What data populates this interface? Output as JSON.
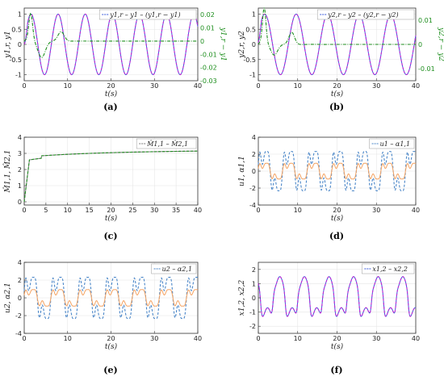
{
  "chart_data": [
    {
      "panel": "(a)",
      "type": "line",
      "xlabel": "t(s)",
      "ylabel": "y1,r, y1",
      "ylabel_right": "y1,r − y1",
      "xlim": [
        0,
        40
      ],
      "ylim": [
        -1.2,
        1.2
      ],
      "ylim_right": [
        -0.03,
        0.025
      ],
      "xticks": [
        "0",
        "10",
        "20",
        "30",
        "40"
      ],
      "yticks": [
        "-1",
        "-0.5",
        "0",
        "0.5",
        "1"
      ],
      "yticks_right": [
        "-0.03",
        "-0.02",
        "-0.01",
        "0",
        "0.01",
        "0.02"
      ],
      "legend": [
        "y1,r",
        "y1",
        "(y1,r − y1)"
      ],
      "legend_position": "top-right",
      "series": [
        {
          "name": "y1,r",
          "color": "#3b5bdb",
          "style": "solid",
          "wave": "sine",
          "amp": 1.0,
          "freq_hz": 0.16,
          "phase": 0
        },
        {
          "name": "y1",
          "color": "#c026d3",
          "style": "dashed",
          "wave": "sine",
          "amp": 1.0,
          "freq_hz": 0.16,
          "phase": 0
        },
        {
          "name": "(y1,r − y1)",
          "axis": "right",
          "color": "#1f8f1f",
          "style": "dashdot",
          "wave": "transient",
          "peak": 0.02,
          "neg_peak": -0.012
        }
      ]
    },
    {
      "panel": "(b)",
      "type": "line",
      "xlabel": "t(s)",
      "ylabel": "y2,r, y2",
      "ylabel_right": "y2,r − y2",
      "xlim": [
        0,
        40
      ],
      "ylim": [
        -1.2,
        1.2
      ],
      "ylim_right": [
        -0.015,
        0.015
      ],
      "xticks": [
        "0",
        "10",
        "20",
        "30",
        "40"
      ],
      "yticks": [
        "-1",
        "-0.5",
        "0",
        "0.5",
        "1"
      ],
      "yticks_right": [
        "-0.01",
        "0",
        "0.01"
      ],
      "legend": [
        "y2,r",
        "y2",
        "(y2,r − y2)"
      ],
      "legend_position": "top-right",
      "series": [
        {
          "name": "y2,r",
          "color": "#3b5bdb",
          "style": "solid",
          "wave": "sine",
          "amp": 1.0,
          "freq_hz": 0.125,
          "phase": 0.3
        },
        {
          "name": "y2",
          "color": "#c026d3",
          "style": "dashed",
          "wave": "sine",
          "amp": 1.0,
          "freq_hz": 0.125,
          "phase": 0.3
        },
        {
          "name": "(y2,r − y2)",
          "axis": "right",
          "color": "#1f8f1f",
          "style": "dashdot",
          "wave": "transient",
          "peak": 0.014,
          "neg_peak": -0.004
        }
      ]
    },
    {
      "panel": "(c)",
      "type": "line",
      "xlabel": "t(s)",
      "ylabel": "M̂1,1, M̂2,1",
      "xlim": [
        0,
        40
      ],
      "ylim": [
        -0.2,
        4
      ],
      "xticks": [
        "0",
        "5",
        "10",
        "15",
        "20",
        "25",
        "30",
        "35",
        "40"
      ],
      "yticks": [
        "0",
        "1",
        "2",
        "3",
        "4"
      ],
      "legend": [
        "M̂1,1",
        "M̂2,1"
      ],
      "legend_position": "top-right",
      "series": [
        {
          "name": "M̂1,1",
          "color": "#7a7a7a",
          "style": "solid",
          "wave": "steps"
        },
        {
          "name": "M̂2,1",
          "color": "#1f8f1f",
          "style": "dashed",
          "wave": "steps"
        }
      ]
    },
    {
      "panel": "(d)",
      "type": "line",
      "xlabel": "t(s)",
      "ylabel": "u1, α1,1",
      "xlim": [
        0,
        40
      ],
      "ylim": [
        -4,
        4
      ],
      "xticks": [
        "0",
        "10",
        "20",
        "30",
        "40"
      ],
      "yticks": [
        "-4",
        "-2",
        "0",
        "2",
        "4"
      ],
      "legend": [
        "u1",
        "α1,1"
      ],
      "legend_position": "top-right",
      "series": [
        {
          "name": "u1",
          "color": "#4a86c8",
          "style": "dashed",
          "wave": "control",
          "amp": 3.0,
          "freq_hz": 0.16
        },
        {
          "name": "α1,1",
          "color": "#f4a261",
          "style": "solid",
          "wave": "control",
          "amp": 1.2,
          "freq_hz": 0.16
        }
      ]
    },
    {
      "panel": "(e)",
      "type": "line",
      "xlabel": "t(s)",
      "ylabel": "u2, α2,1",
      "xlim": [
        0,
        40
      ],
      "ylim": [
        -4,
        4
      ],
      "xticks": [
        "0",
        "10",
        "20",
        "30",
        "40"
      ],
      "yticks": [
        "-4",
        "-2",
        "0",
        "2",
        "4"
      ],
      "legend": [
        "u2",
        "α2,1"
      ],
      "legend_position": "top-right",
      "series": [
        {
          "name": "u2",
          "color": "#4a86c8",
          "style": "dashed",
          "wave": "control",
          "amp": 3.0,
          "freq_hz": 0.16
        },
        {
          "name": "α2,1",
          "color": "#f4a261",
          "style": "solid",
          "wave": "control",
          "amp": 1.2,
          "freq_hz": 0.16
        }
      ]
    },
    {
      "panel": "(f)",
      "type": "line",
      "xlabel": "t(s)",
      "ylabel": "x1,2, x2,2",
      "xlim": [
        0,
        40
      ],
      "ylim": [
        -2.5,
        2.5
      ],
      "xticks": [
        "0",
        "10",
        "20",
        "30",
        "40"
      ],
      "yticks": [
        "-2",
        "-1",
        "0",
        "1",
        "2"
      ],
      "legend": [
        "x1,2",
        "x2,2"
      ],
      "legend_position": "top-right",
      "series": [
        {
          "name": "x1,2",
          "color": "#3b5bdb",
          "style": "solid",
          "wave": "pulse",
          "amp": 2.0,
          "freq_hz": 0.16
        },
        {
          "name": "x2,2",
          "color": "#c026d3",
          "style": "dashed",
          "wave": "pulse",
          "amp": 2.0,
          "freq_hz": 0.16
        }
      ]
    }
  ]
}
